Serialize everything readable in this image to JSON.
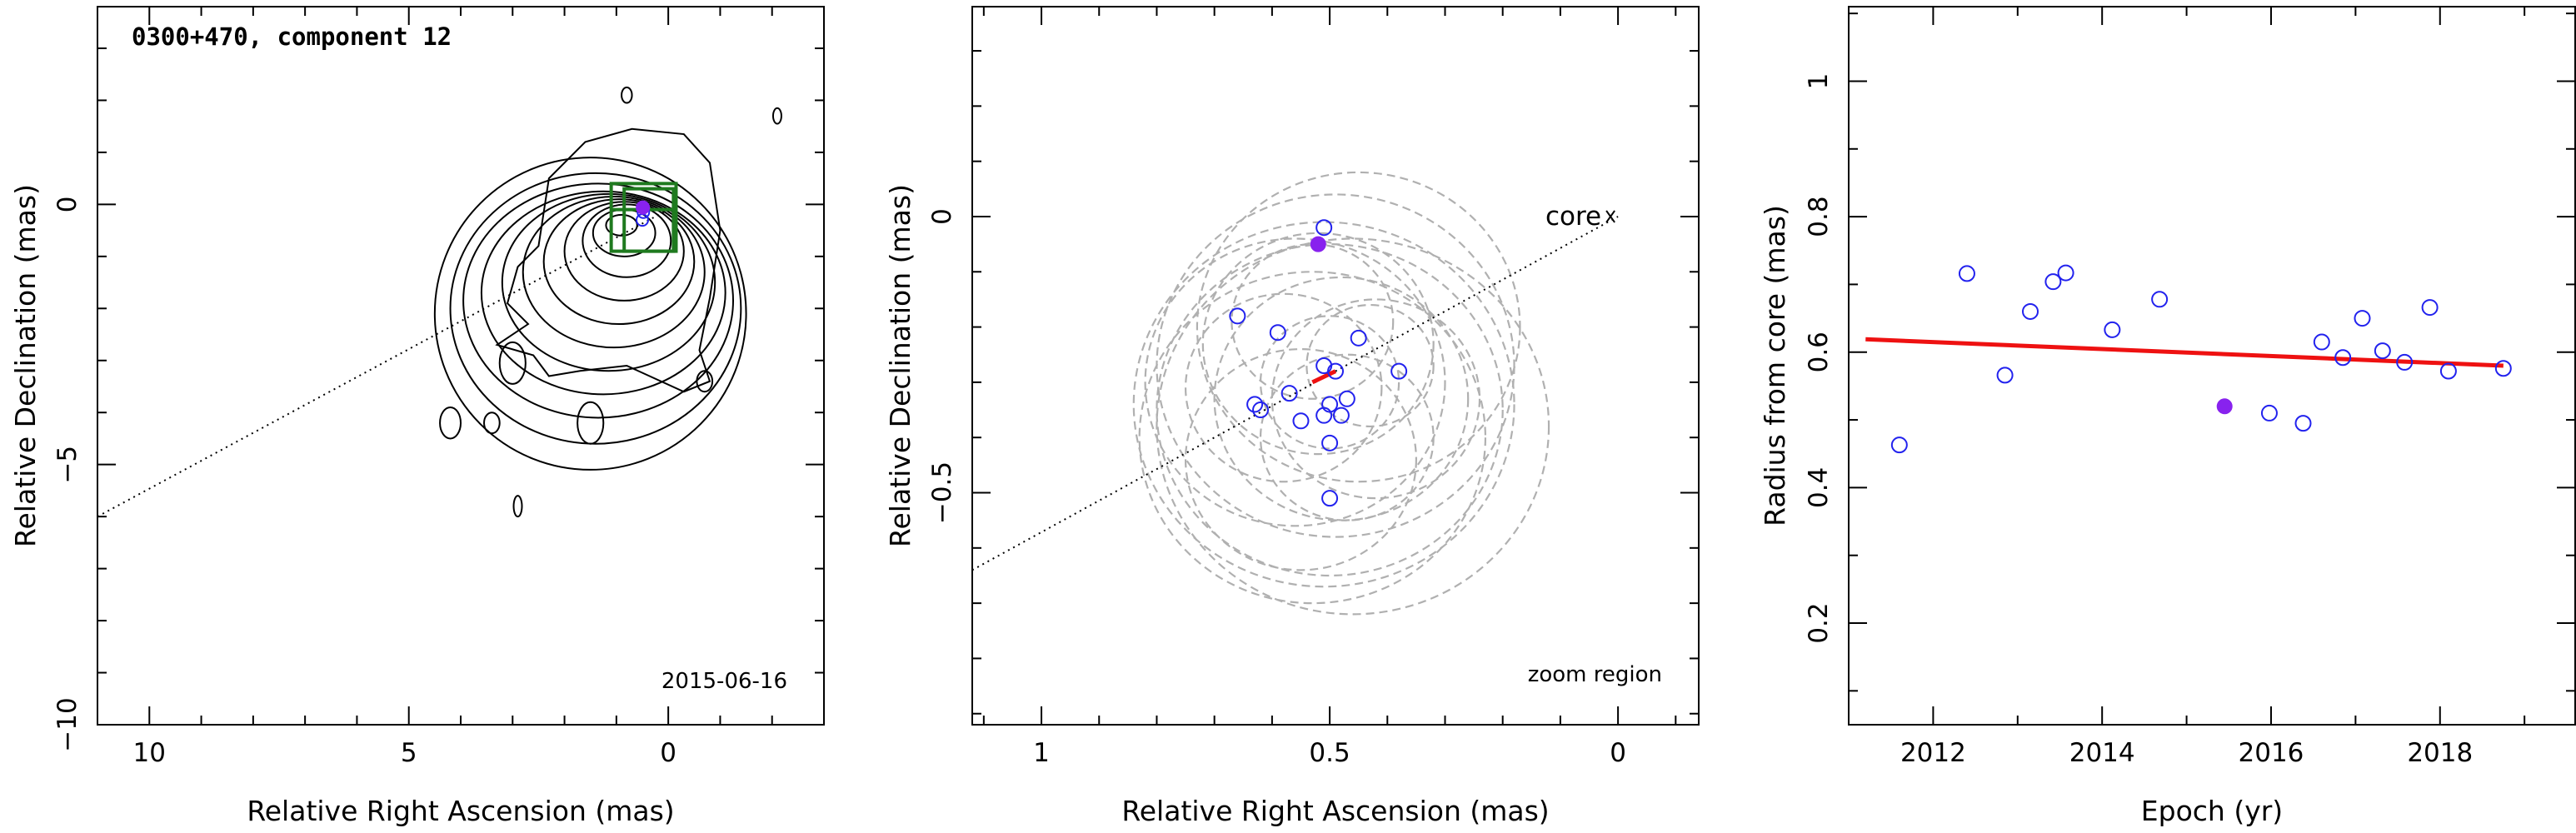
{
  "colors": {
    "axis": "#000000",
    "contour": "#000000",
    "box": "#1f7a1f",
    "error_circle": "#b0b0b0",
    "point": "#2222ee",
    "highlight": "#8822ee",
    "fit_line": "#ee1111"
  },
  "chart_data": [
    {
      "type": "contour",
      "title": "0300+470, component 12",
      "xlabel": "Relative Right Ascension (mas)",
      "ylabel": "Relative Declination (mas)",
      "xlim": [
        11.0,
        -3.0
      ],
      "ylim": [
        -10.0,
        3.8
      ],
      "xticks": [
        10,
        5,
        0
      ],
      "yticks": [
        0,
        -5,
        -10
      ],
      "date": "2015-06-16",
      "jet_direction_line": {
        "x": [
          11.0,
          0.0
        ],
        "y": [
          -6.0,
          -0.1
        ]
      },
      "contours": [
        {
          "x": 0.9,
          "y": -0.4,
          "rx": 0.3,
          "ry": 0.2
        },
        {
          "x": 0.85,
          "y": -0.55,
          "rx": 0.6,
          "ry": 0.45
        },
        {
          "x": 0.8,
          "y": -0.7,
          "rx": 0.85,
          "ry": 0.7
        },
        {
          "x": 0.85,
          "y": -0.9,
          "rx": 1.15,
          "ry": 0.95
        },
        {
          "x": 0.95,
          "y": -1.1,
          "rx": 1.45,
          "ry": 1.2
        },
        {
          "x": 1.05,
          "y": -1.3,
          "rx": 1.75,
          "ry": 1.45
        },
        {
          "x": 1.15,
          "y": -1.5,
          "rx": 2.05,
          "ry": 1.7
        },
        {
          "x": 1.25,
          "y": -1.7,
          "rx": 2.35,
          "ry": 1.95
        },
        {
          "x": 1.35,
          "y": -1.85,
          "rx": 2.6,
          "ry": 2.25
        },
        {
          "x": 1.4,
          "y": -2.0,
          "rx": 2.8,
          "ry": 2.6
        },
        {
          "x": 1.5,
          "y": -2.1,
          "rx": 3.0,
          "ry": 3.0
        }
      ],
      "outer_contour": [
        [
          -1.0,
          -0.5
        ],
        [
          -0.8,
          -1.8
        ],
        [
          -0.6,
          -2.8
        ],
        [
          -0.8,
          -3.4
        ],
        [
          -0.3,
          -3.6
        ],
        [
          0.8,
          -3.1
        ],
        [
          1.7,
          -3.2
        ],
        [
          2.3,
          -3.3
        ],
        [
          2.6,
          -2.9
        ],
        [
          3.3,
          -2.7
        ],
        [
          2.7,
          -2.3
        ],
        [
          3.1,
          -1.9
        ],
        [
          2.9,
          -1.2
        ],
        [
          2.5,
          -0.8
        ],
        [
          2.3,
          0.5
        ],
        [
          1.6,
          1.2
        ],
        [
          0.7,
          1.45
        ],
        [
          -0.3,
          1.35
        ],
        [
          -0.8,
          0.8
        ],
        [
          -1.0,
          -0.5
        ]
      ],
      "blobs": [
        {
          "x": 4.2,
          "y": -4.2,
          "rx": 0.2,
          "ry": 0.3
        },
        {
          "x": 3.4,
          "y": -4.2,
          "rx": 0.15,
          "ry": 0.2
        },
        {
          "x": 3.0,
          "y": -3.05,
          "rx": 0.25,
          "ry": 0.4
        },
        {
          "x": 1.5,
          "y": -4.2,
          "rx": 0.25,
          "ry": 0.4
        },
        {
          "x": -0.7,
          "y": -3.4,
          "rx": 0.15,
          "ry": 0.2
        },
        {
          "x": 2.9,
          "y": -5.8,
          "rx": 0.08,
          "ry": 0.2
        },
        {
          "x": 0.8,
          "y": 2.1,
          "rx": 0.1,
          "ry": 0.15
        },
        {
          "x": -2.1,
          "y": 1.7,
          "rx": 0.08,
          "ry": 0.15
        }
      ],
      "zoom_boxes": [
        {
          "x": [
            1.1,
            -0.15
          ],
          "y": [
            -0.9,
            0.4
          ]
        },
        {
          "x": [
            0.85,
            -0.1
          ],
          "y": [
            -0.9,
            0.3
          ]
        }
      ],
      "points": [
        {
          "x": 0.5,
          "y": -0.3
        },
        {
          "x": 0.48,
          "y": -0.15
        }
      ],
      "highlight_point": {
        "x": 0.49,
        "y": -0.06
      }
    },
    {
      "type": "scatter",
      "xlabel": "Relative Right Ascension (mas)",
      "ylabel": "Relative Declination (mas)",
      "xlim": [
        1.12,
        -0.14
      ],
      "ylim": [
        -0.92,
        0.38
      ],
      "xticks": [
        1,
        0.5,
        0
      ],
      "yticks": [
        0,
        -0.5
      ],
      "core_label": "core",
      "core_point": {
        "x": 0,
        "y": 0
      },
      "corner_label": "zoom region",
      "jet_direction_line": {
        "x": [
          1.12,
          0.0
        ],
        "y": [
          -0.64,
          0.0
        ]
      },
      "points": [
        {
          "x": 0.51,
          "y": -0.02
        },
        {
          "x": 0.66,
          "y": -0.18
        },
        {
          "x": 0.59,
          "y": -0.21
        },
        {
          "x": 0.45,
          "y": -0.22
        },
        {
          "x": 0.38,
          "y": -0.28
        },
        {
          "x": 0.51,
          "y": -0.27
        },
        {
          "x": 0.49,
          "y": -0.28
        },
        {
          "x": 0.57,
          "y": -0.32
        },
        {
          "x": 0.63,
          "y": -0.34
        },
        {
          "x": 0.62,
          "y": -0.35
        },
        {
          "x": 0.47,
          "y": -0.33
        },
        {
          "x": 0.5,
          "y": -0.34
        },
        {
          "x": 0.51,
          "y": -0.36
        },
        {
          "x": 0.48,
          "y": -0.36
        },
        {
          "x": 0.55,
          "y": -0.37
        },
        {
          "x": 0.5,
          "y": -0.41
        },
        {
          "x": 0.5,
          "y": -0.51
        }
      ],
      "highlight_point": {
        "x": 0.52,
        "y": -0.05
      },
      "fit_segment": {
        "x": [
          0.53,
          0.49
        ],
        "y": [
          -0.3,
          -0.28
        ]
      },
      "error_circles": [
        {
          "x": 0.5,
          "y": -0.35,
          "r": 0.3
        },
        {
          "x": 0.49,
          "y": -0.27,
          "r": 0.31
        },
        {
          "x": 0.51,
          "y": -0.34,
          "r": 0.33
        },
        {
          "x": 0.46,
          "y": -0.38,
          "r": 0.34
        },
        {
          "x": 0.53,
          "y": -0.4,
          "r": 0.3
        },
        {
          "x": 0.45,
          "y": -0.2,
          "r": 0.28
        },
        {
          "x": 0.56,
          "y": -0.3,
          "r": 0.26
        },
        {
          "x": 0.48,
          "y": -0.33,
          "r": 0.22
        },
        {
          "x": 0.52,
          "y": -0.23,
          "r": 0.2
        },
        {
          "x": 0.55,
          "y": -0.44,
          "r": 0.2
        },
        {
          "x": 0.42,
          "y": -0.33,
          "r": 0.18
        },
        {
          "x": 0.58,
          "y": -0.31,
          "r": 0.17
        },
        {
          "x": 0.5,
          "y": -0.3,
          "r": 0.12
        },
        {
          "x": 0.47,
          "y": -0.4,
          "r": 0.15
        },
        {
          "x": 0.53,
          "y": -0.19,
          "r": 0.14
        },
        {
          "x": 0.43,
          "y": -0.27,
          "r": 0.11
        }
      ]
    },
    {
      "type": "scatter",
      "xlabel": "Epoch (yr)",
      "ylabel": "Radius from core (mas)",
      "xlim": [
        2011.0,
        2019.6
      ],
      "ylim": [
        0.05,
        1.11
      ],
      "xticks": [
        2012,
        2014,
        2016,
        2018
      ],
      "yticks": [
        0.2,
        0.4,
        0.6,
        0.8,
        1
      ],
      "points": [
        {
          "x": 2011.6,
          "y": 0.463
        },
        {
          "x": 2012.4,
          "y": 0.716
        },
        {
          "x": 2012.85,
          "y": 0.566
        },
        {
          "x": 2013.15,
          "y": 0.66
        },
        {
          "x": 2013.42,
          "y": 0.704
        },
        {
          "x": 2013.57,
          "y": 0.717
        },
        {
          "x": 2014.12,
          "y": 0.633
        },
        {
          "x": 2014.68,
          "y": 0.678
        },
        {
          "x": 2015.98,
          "y": 0.51
        },
        {
          "x": 2016.38,
          "y": 0.495
        },
        {
          "x": 2016.6,
          "y": 0.615
        },
        {
          "x": 2016.85,
          "y": 0.592
        },
        {
          "x": 2017.08,
          "y": 0.65
        },
        {
          "x": 2017.32,
          "y": 0.602
        },
        {
          "x": 2017.58,
          "y": 0.585
        },
        {
          "x": 2017.88,
          "y": 0.666
        },
        {
          "x": 2018.1,
          "y": 0.572
        },
        {
          "x": 2018.75,
          "y": 0.576
        }
      ],
      "highlight_point": {
        "x": 2015.45,
        "y": 0.52
      },
      "fit_line": {
        "x": [
          2011.2,
          2018.75
        ],
        "y": [
          0.619,
          0.58
        ]
      }
    }
  ]
}
